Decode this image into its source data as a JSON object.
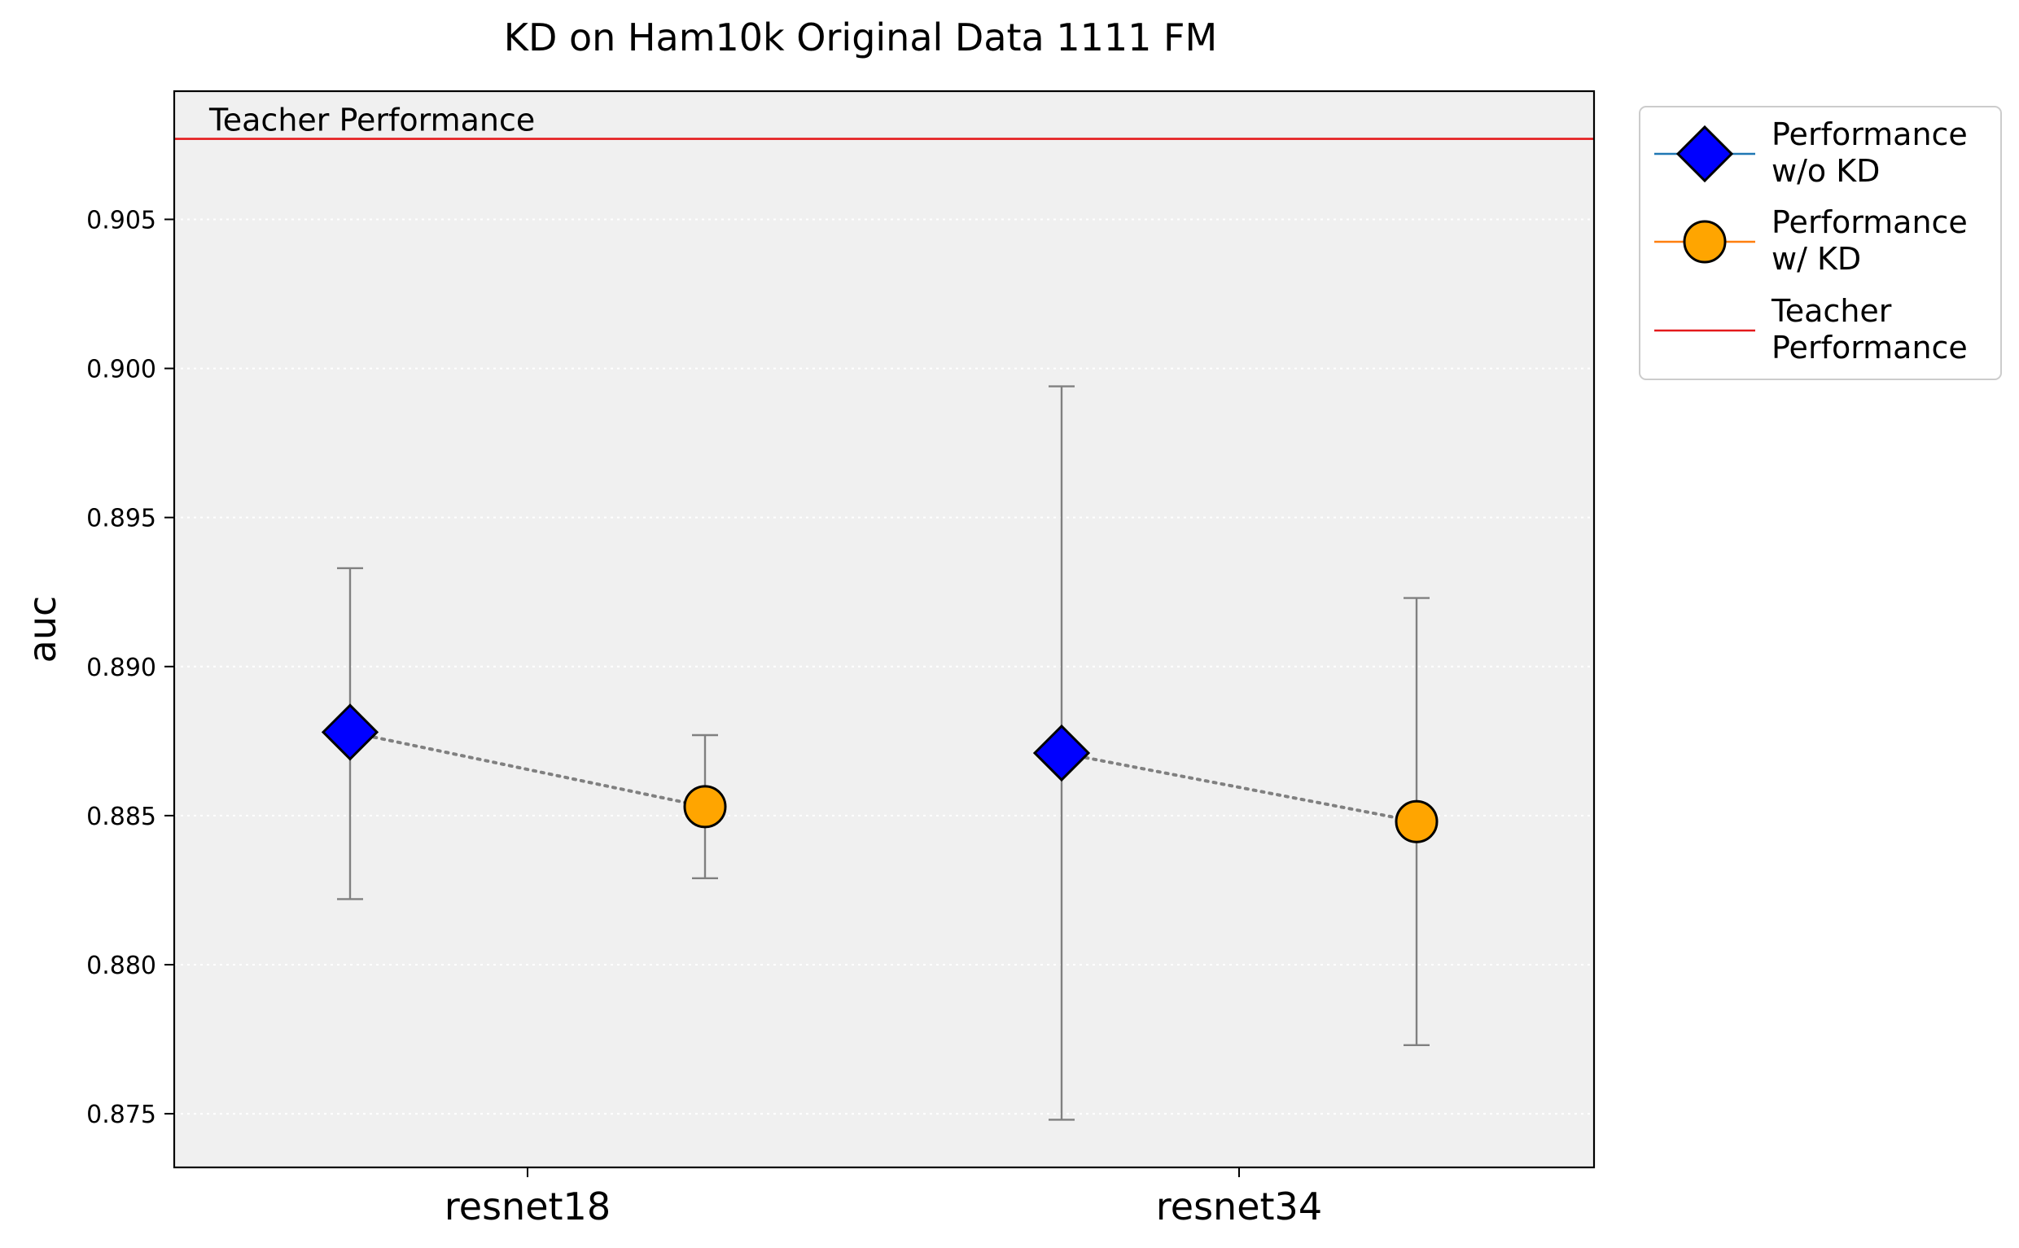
{
  "chart_data": {
    "type": "scatter",
    "title": "KD on Ham10k Original Data 1111 FM",
    "xlabel": "",
    "ylabel": "auc",
    "categories": [
      "resnet18",
      "resnet34"
    ],
    "ylim": [
      0.8732,
      0.9093
    ],
    "yticks": [
      0.875,
      0.88,
      0.885,
      0.89,
      0.895,
      0.9,
      0.905
    ],
    "ytick_labels": [
      "0.875",
      "0.880",
      "0.885",
      "0.890",
      "0.895",
      "0.900",
      "0.905"
    ],
    "grid": true,
    "legend_position": "outside upper right",
    "series": [
      {
        "name": "Performance\nw/o KD",
        "legend_lines": [
          "Performance",
          "w/o KD"
        ],
        "marker": "diamond",
        "color": "#0000ff",
        "legend_line_color": "#1f77b4",
        "points": [
          {
            "category": "resnet18",
            "value": 0.8878,
            "err_low": 0.8822,
            "err_high": 0.8933
          },
          {
            "category": "resnet34",
            "value": 0.8871,
            "err_low": 0.8748,
            "err_high": 0.8994
          }
        ]
      },
      {
        "name": "Performance\nw/ KD",
        "legend_lines": [
          "Performance",
          "w/ KD"
        ],
        "marker": "circle",
        "color": "#ffa500",
        "legend_line_color": "#ff7f0e",
        "points": [
          {
            "category": "resnet18",
            "value": 0.8853,
            "err_low": 0.8829,
            "err_high": 0.8877
          },
          {
            "category": "resnet34",
            "value": 0.8848,
            "err_low": 0.8773,
            "err_high": 0.8923
          }
        ]
      }
    ],
    "reference_line": {
      "name": "Teacher\nPerformance",
      "legend_lines": [
        "Teacher",
        "Performance"
      ],
      "label": "Teacher Performance",
      "value": 0.9077,
      "color": "#e41a1c"
    },
    "connector_color": "#808080",
    "errorbar_color": "#808080",
    "axes_background": "#f0f0f0"
  }
}
